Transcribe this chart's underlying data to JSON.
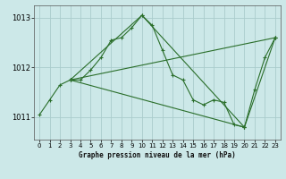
{
  "bg_color": "#cce8e8",
  "grid_color": "#aacccc",
  "line_color": "#2a6e2a",
  "title": "Graphe pression niveau de la mer (hPa)",
  "xlim": [
    -0.5,
    23.5
  ],
  "ylim": [
    1010.55,
    1013.25
  ],
  "yticks": [
    1011,
    1012,
    1013
  ],
  "xticks": [
    0,
    1,
    2,
    3,
    4,
    5,
    6,
    7,
    8,
    9,
    10,
    11,
    12,
    13,
    14,
    15,
    16,
    17,
    18,
    19,
    20,
    21,
    22,
    23
  ],
  "series1_x": [
    0,
    1,
    2,
    3,
    4,
    5,
    6,
    7,
    8,
    9,
    10,
    11,
    12,
    13,
    14,
    15,
    16,
    17,
    18,
    19,
    20,
    21,
    22,
    23
  ],
  "series1_y": [
    1011.05,
    1011.35,
    1011.65,
    1011.75,
    1011.75,
    1011.95,
    1012.2,
    1012.55,
    1012.6,
    1012.8,
    1013.05,
    1012.85,
    1012.35,
    1011.85,
    1011.75,
    1011.35,
    1011.25,
    1011.35,
    1011.3,
    1010.85,
    1010.8,
    1011.55,
    1012.2,
    1012.6
  ],
  "series2_x": [
    3,
    23
  ],
  "series2_y": [
    1011.75,
    1012.6
  ],
  "series3_x": [
    3,
    20
  ],
  "series3_y": [
    1011.75,
    1010.8
  ],
  "series4_x": [
    3,
    10,
    20,
    23
  ],
  "series4_y": [
    1011.75,
    1013.05,
    1010.8,
    1012.6
  ]
}
